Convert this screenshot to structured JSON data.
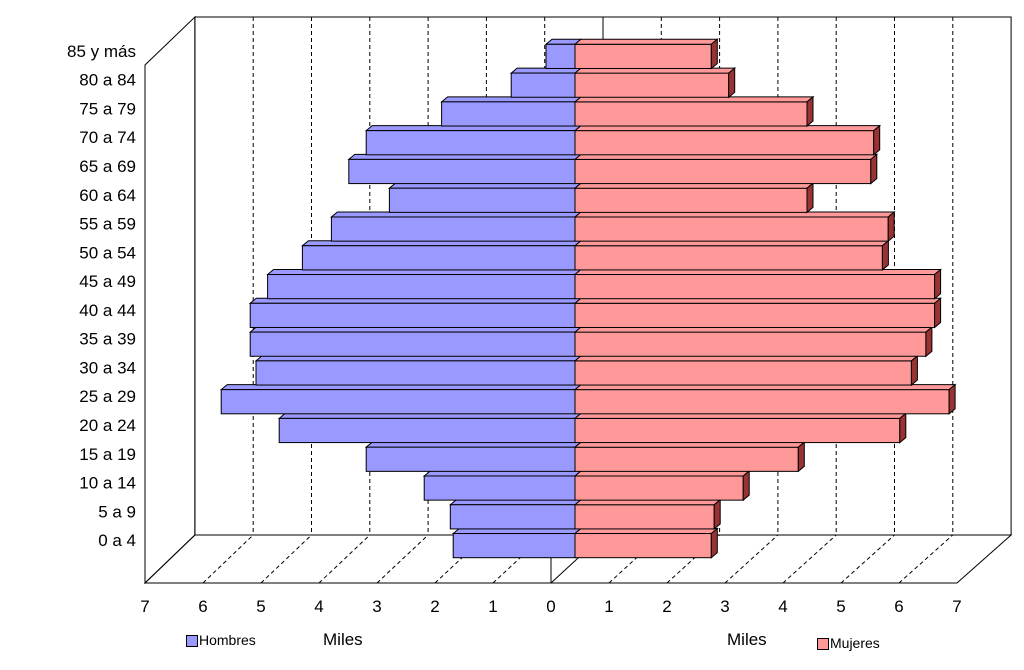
{
  "chart_data": {
    "type": "bar",
    "subtype": "population-pyramid-3d",
    "categories": [
      "0 a 4",
      "5 a 9",
      "10 a 14",
      "15 a 19",
      "20 a 24",
      "25 a 29",
      "30 a 34",
      "35 a 39",
      "40 a 44",
      "45 a 49",
      "50 a 54",
      "55 a 59",
      "60 a 64",
      "65 a 69",
      "70 a 74",
      "75 a 79",
      "80 a 84",
      "85 y más"
    ],
    "series": [
      {
        "name": "Hombres",
        "color": "#9999ff",
        "side_color": "#3333aa",
        "values": [
          2.1,
          2.15,
          2.6,
          3.6,
          5.1,
          6.1,
          5.5,
          5.6,
          5.6,
          5.3,
          4.7,
          4.2,
          3.2,
          3.9,
          3.6,
          2.3,
          1.1,
          0.5
        ]
      },
      {
        "name": "Mujeres",
        "color": "#ff9999",
        "side_color": "#993333",
        "values": [
          2.35,
          2.4,
          2.9,
          3.85,
          5.6,
          6.45,
          5.8,
          6.05,
          6.2,
          6.2,
          5.3,
          5.4,
          4.0,
          5.1,
          5.15,
          4.0,
          2.65,
          2.35
        ]
      }
    ],
    "x_ticks_left": [
      "7",
      "6",
      "5",
      "4",
      "3",
      "2",
      "1",
      "0"
    ],
    "x_ticks_right": [
      "1",
      "2",
      "3",
      "4",
      "5",
      "6",
      "7"
    ],
    "xlim": [
      0,
      7
    ],
    "xlabel_left": "Miles",
    "xlabel_right": "Miles",
    "grid": "dashed-vertical",
    "legend": [
      {
        "label": "Hombres",
        "color": "#9999ff"
      },
      {
        "label": "Mujeres",
        "color": "#ff9999"
      }
    ]
  }
}
